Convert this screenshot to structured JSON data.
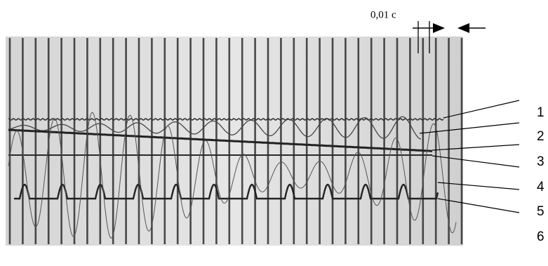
{
  "annotation": "0,01 c",
  "labels": [
    "1",
    "2",
    "3",
    "4",
    "5",
    "6"
  ]
}
